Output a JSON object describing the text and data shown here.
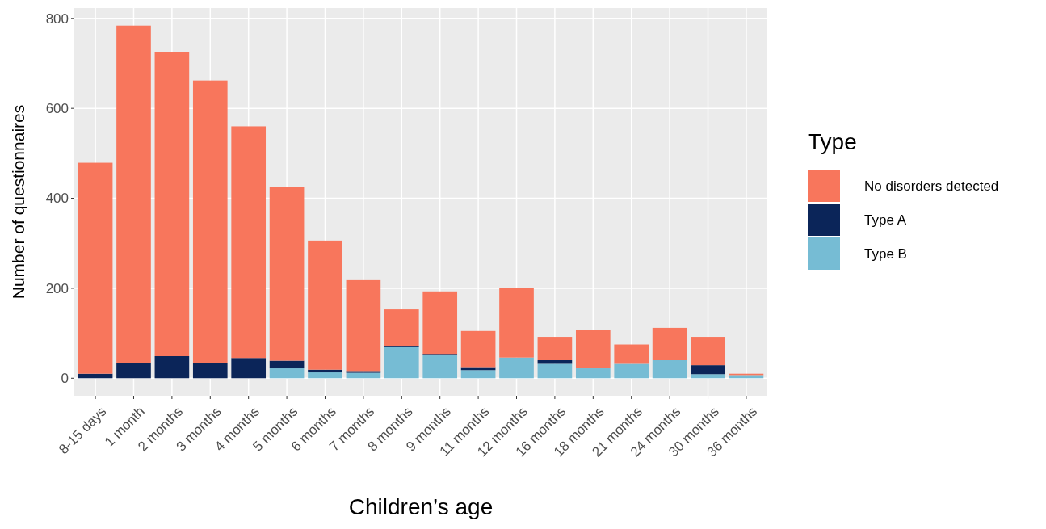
{
  "chart_data": {
    "type": "bar",
    "stacked": true,
    "xlabel": "Children’s age",
    "ylabel": "Number of questionnaires",
    "legend_title": "Type",
    "legend": "right",
    "grid": true,
    "categories": [
      "8-15 days",
      "1 month",
      "2 months",
      "3 months",
      "4 months",
      "5 months",
      "6 months",
      "7 months",
      "8 months",
      "9 months",
      "11 months",
      "12 months",
      "16 months",
      "18 months",
      "21 months",
      "24 months",
      "30 months",
      "36 months"
    ],
    "series": [
      {
        "name": "Type B",
        "color": "#76bcd4",
        "values": [
          0,
          0,
          0,
          0,
          0,
          22,
          13,
          12,
          69,
          52,
          18,
          46,
          32,
          22,
          32,
          40,
          9,
          7
        ]
      },
      {
        "name": "Type A",
        "color": "#0b2559",
        "values": [
          10,
          34,
          49,
          33,
          45,
          17,
          6,
          4,
          2,
          2,
          5,
          0,
          8,
          0,
          0,
          0,
          20,
          0
        ]
      },
      {
        "name": "No disorders detected",
        "color": "#f8765c",
        "values": [
          469,
          750,
          677,
          629,
          515,
          387,
          287,
          202,
          82,
          139,
          82,
          154,
          52,
          86,
          43,
          72,
          63,
          3
        ]
      }
    ],
    "ylim": [
      -39,
      823
    ],
    "yticks": [
      0,
      200,
      400,
      600,
      800
    ]
  }
}
